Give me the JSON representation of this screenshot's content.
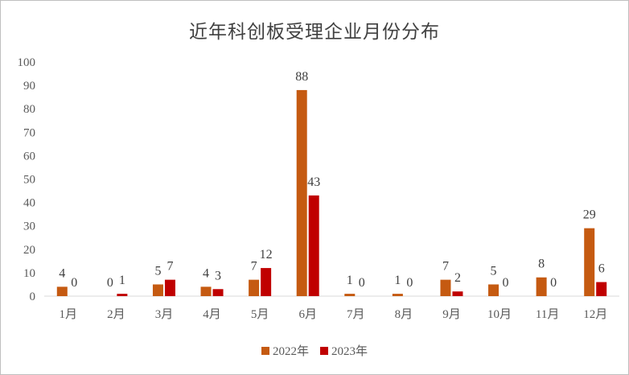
{
  "chart_data": {
    "type": "bar",
    "title": "近年科创板受理企业月份分布",
    "categories": [
      "1月",
      "2月",
      "3月",
      "4月",
      "5月",
      "6月",
      "7月",
      "8月",
      "9月",
      "10月",
      "11月",
      "12月"
    ],
    "series": [
      {
        "name": "2022年",
        "values": [
          4,
          0,
          5,
          4,
          7,
          88,
          1,
          1,
          7,
          5,
          8,
          29
        ],
        "color": "#C55A11"
      },
      {
        "name": "2023年",
        "values": [
          0,
          1,
          7,
          3,
          12,
          43,
          0,
          0,
          2,
          0,
          0,
          6
        ],
        "color": "#C00000"
      }
    ],
    "ylim": [
      0,
      100
    ],
    "yticks": [
      0,
      10,
      20,
      30,
      40,
      50,
      60,
      70,
      80,
      90,
      100
    ],
    "grid": false,
    "legend": "bottom"
  }
}
